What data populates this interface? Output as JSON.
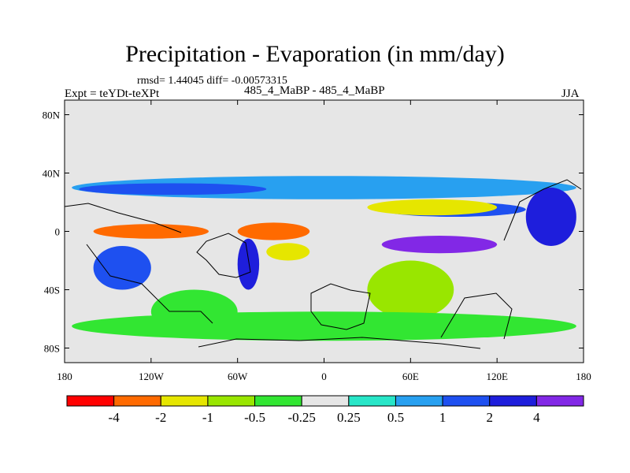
{
  "chart_data": {
    "type": "heatmap",
    "title": "Precipitation - Evaporation (in mm/day)",
    "stats_text": "rmsd= 1.44045 diff= -0.00573315",
    "left_label": "Expt = teYDt-teXPt",
    "center_label": "485_4_MaBP - 485_4_MaBP",
    "right_label": "JJA",
    "x_ticks": [
      "180",
      "120W",
      "60W",
      "0",
      "60E",
      "120E",
      "180"
    ],
    "y_ticks": [
      "80N",
      "40N",
      "0",
      "40S",
      "80S"
    ],
    "xlim": [
      -180,
      180
    ],
    "ylim": [
      -90,
      90
    ],
    "colorbar": {
      "colors": [
        "#ff0000",
        "#ff6a00",
        "#e6e600",
        "#99e600",
        "#32e632",
        "#e6e6e6",
        "#28e6c8",
        "#28a0f0",
        "#1e50f0",
        "#1e1edc",
        "#8228e6"
      ],
      "labels": [
        "-4",
        "-2",
        "-1",
        "-0.5",
        "-0.25",
        "0.25",
        "0.5",
        "1",
        "2",
        "4"
      ]
    },
    "regions": [
      {
        "name": "band-north",
        "value": 0.75,
        "lon": [
          -175,
          175
        ],
        "lat": [
          22,
          38
        ]
      },
      {
        "name": "band-north-inner",
        "value": 1.5,
        "lon": [
          -170,
          -40
        ],
        "lat": [
          25,
          33
        ]
      },
      {
        "name": "band-north-east",
        "value": 1.5,
        "lon": [
          40,
          140
        ],
        "lat": [
          10,
          20
        ]
      },
      {
        "name": "east-pacific-dry",
        "value": -3.0,
        "lon": [
          -160,
          -80
        ],
        "lat": [
          -5,
          5
        ]
      },
      {
        "name": "atlantic-dry",
        "value": -3.0,
        "lon": [
          -60,
          -10
        ],
        "lat": [
          -6,
          6
        ]
      },
      {
        "name": "north-indian-dry",
        "value": -2.0,
        "lon": [
          30,
          120
        ],
        "lat": [
          11,
          22
        ]
      },
      {
        "name": "south-atlantic-dry",
        "value": -1.5,
        "lon": [
          -40,
          -10
        ],
        "lat": [
          -20,
          -8
        ]
      },
      {
        "name": "indian-wet",
        "value": 4.5,
        "lon": [
          40,
          120
        ],
        "lat": [
          -15,
          -3
        ]
      },
      {
        "name": "south-pacific-wet",
        "value": 1.5,
        "lon": [
          -160,
          -120
        ],
        "lat": [
          -40,
          -10
        ]
      },
      {
        "name": "south-america-wet",
        "value": 2.5,
        "lon": [
          -60,
          -45
        ],
        "lat": [
          -40,
          -5
        ]
      },
      {
        "name": "south-indian-dry",
        "value": -0.75,
        "lon": [
          30,
          90
        ],
        "lat": [
          -60,
          -20
        ]
      },
      {
        "name": "south-pacific-dry",
        "value": -0.5,
        "lon": [
          -120,
          -60
        ],
        "lat": [
          -70,
          -40
        ]
      },
      {
        "name": "west-pacific-wet",
        "value": 2.5,
        "lon": [
          140,
          175
        ],
        "lat": [
          -10,
          30
        ]
      },
      {
        "name": "southern-ocean-green",
        "value": -0.3,
        "lon": [
          -175,
          175
        ],
        "lat": [
          -75,
          -55
        ]
      }
    ]
  }
}
